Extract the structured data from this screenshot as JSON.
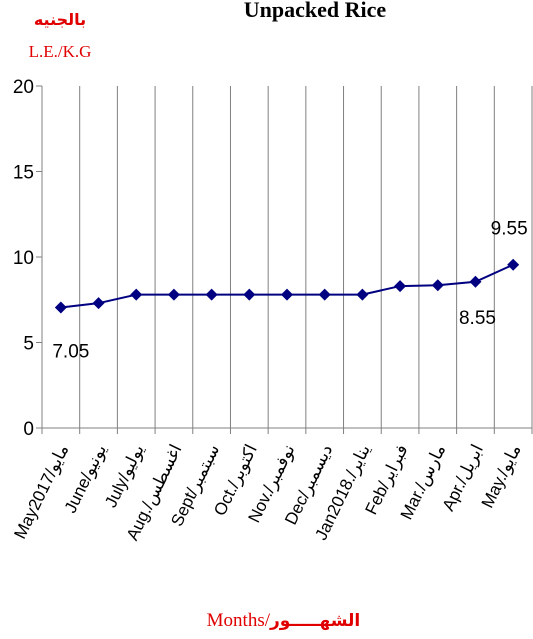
{
  "chart_data": {
    "type": "line",
    "title": "Unpacked Rice",
    "ylabel_ar": "بالجنيه",
    "ylabel": "L.E./K.G",
    "xlabel": "Months/",
    "xlabel_ar": "الشهـــــور",
    "ylim": [
      0,
      20
    ],
    "yticks": [
      0,
      5,
      10,
      15,
      20
    ],
    "grid": "vertical",
    "categories": [
      "May2017/مايو",
      "June/يونيو",
      "July/يوليو",
      "Aug./اغسطس",
      "Sept/سبتمبر",
      "Oct./اكتوبر",
      "Nov./نوفمبر",
      "Dec/ديسمبر",
      "Jan2018./يناير",
      "Feb/فبراير",
      "Mar./مارس",
      "Apr./ابريل",
      "May./مايو"
    ],
    "series": [
      {
        "color": "#000080",
        "values": [
          7.05,
          7.3,
          7.8,
          7.8,
          7.8,
          7.8,
          7.8,
          7.8,
          7.8,
          8.3,
          8.35,
          8.55,
          9.55
        ]
      }
    ],
    "data_labels": [
      {
        "index": 0,
        "text": "7.05"
      },
      {
        "index": 11,
        "text": "8.55"
      },
      {
        "index": 12,
        "text": "9.55"
      }
    ]
  }
}
